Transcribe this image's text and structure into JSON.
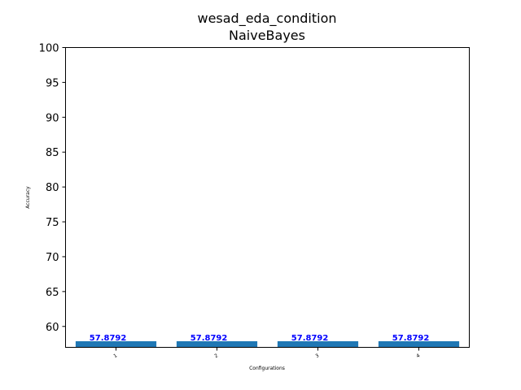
{
  "chart_data": {
    "type": "bar",
    "title": "wesad_eda_condition",
    "subtitle": "NaiveBayes",
    "xlabel": "Configurations",
    "ylabel": "Accuracy",
    "categories": [
      "1",
      "2",
      "3",
      "4"
    ],
    "values": [
      57.8792,
      57.8792,
      57.8792,
      57.8792
    ],
    "data_labels": [
      "57.8792",
      "57.8792",
      "57.8792",
      "57.8792"
    ],
    "ylim": [
      57.0,
      100
    ],
    "yticks": [
      60,
      65,
      70,
      75,
      80,
      85,
      90,
      95,
      100
    ],
    "grid": false,
    "legend": "none",
    "colors": {
      "bar": "#1f77b4",
      "data_label": "#0000ff",
      "axis": "#000000"
    }
  }
}
